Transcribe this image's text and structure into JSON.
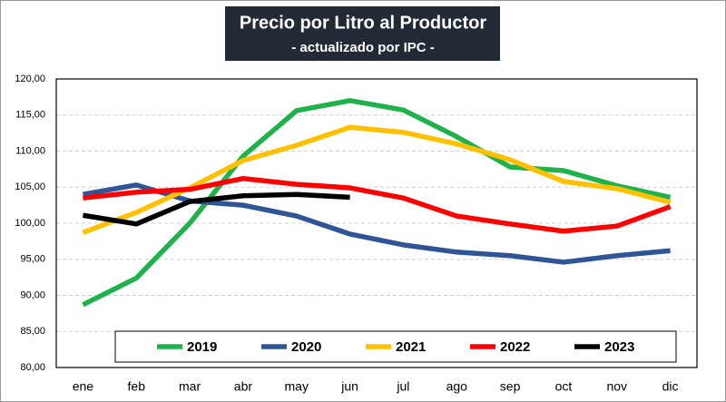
{
  "chart_data": {
    "type": "line",
    "title": "Precio por Litro al Productor",
    "subtitle": "- actualizado por IPC -",
    "categories": [
      "ene",
      "feb",
      "mar",
      "abr",
      "may",
      "jun",
      "jul",
      "ago",
      "sep",
      "oct",
      "nov",
      "dic"
    ],
    "series": [
      {
        "name": "2019",
        "color": "#1fb24a",
        "values": [
          88.7,
          92.4,
          100,
          109.3,
          115.6,
          117,
          115.7,
          112,
          107.8,
          107.3,
          105.2,
          103.6
        ]
      },
      {
        "name": "2020",
        "color": "#2f5597",
        "values": [
          104,
          105.3,
          103.1,
          102.5,
          101,
          98.5,
          97,
          96,
          95.5,
          94.6,
          95.5,
          96.2
        ]
      },
      {
        "name": "2021",
        "color": "#ffc000",
        "values": [
          98.7,
          101.5,
          104.9,
          108.7,
          110.8,
          113.3,
          112.6,
          111,
          108.8,
          105.8,
          104.8,
          102.9
        ]
      },
      {
        "name": "2022",
        "color": "#ff0000",
        "values": [
          103.5,
          104.3,
          104.7,
          106.2,
          105.4,
          104.9,
          103.5,
          101,
          99.9,
          98.9,
          99.6,
          102.3
        ]
      },
      {
        "name": "2023",
        "color": "#000000",
        "values": [
          101.1,
          99.9,
          103,
          103.8,
          104,
          103.6,
          null,
          null,
          null,
          null,
          null,
          null
        ]
      }
    ],
    "ylim": [
      80,
      120
    ],
    "yticks": [
      {
        "value": 80,
        "label": "80,00"
      },
      {
        "value": 85,
        "label": "85,00"
      },
      {
        "value": 90,
        "label": "90,00"
      },
      {
        "value": 95,
        "label": "95,00"
      },
      {
        "value": 100,
        "label": "100,00"
      },
      {
        "value": 105,
        "label": "105,00"
      },
      {
        "value": 110,
        "label": "110,00"
      },
      {
        "value": 115,
        "label": "115,00"
      },
      {
        "value": 120,
        "label": "120,00"
      }
    ],
    "grid": true,
    "legend": "bottom"
  }
}
